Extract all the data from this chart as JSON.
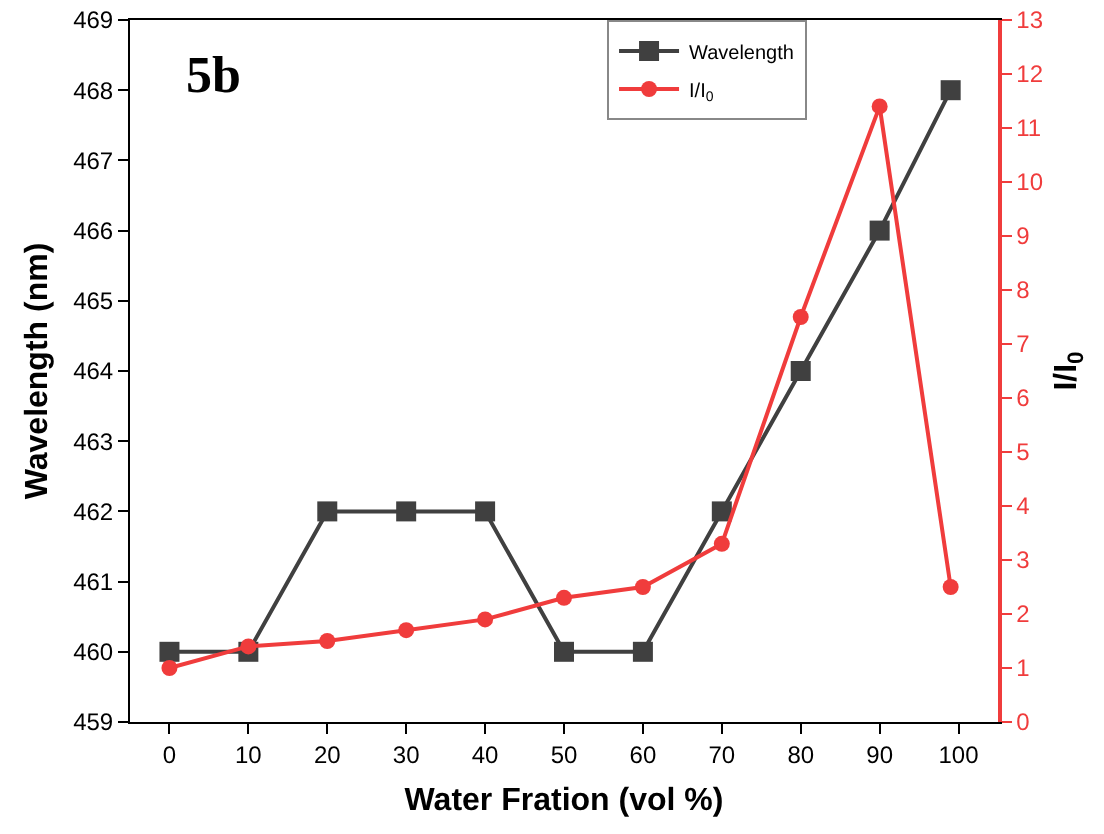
{
  "chart_data": {
    "type": "line",
    "xlabel": "Water Fration (vol %)",
    "ylabel": "Wavelength (nm)",
    "y2label": "I/I$_{0}$",
    "annotations": [
      "5b"
    ],
    "x": [
      0,
      10,
      20,
      30,
      40,
      50,
      60,
      70,
      80,
      90,
      99
    ],
    "series": [
      {
        "name": "Wavelength",
        "color": "#404040",
        "marker": "square",
        "values": [
          460,
          460,
          462,
          462,
          462,
          460,
          460,
          462,
          464,
          466,
          468
        ]
      },
      {
        "name": "I/I$_{0}$",
        "color": "#f03c3c",
        "marker": "circle",
        "axis": "y2",
        "values": [
          1.0,
          1.4,
          1.5,
          1.7,
          1.9,
          2.3,
          2.5,
          3.3,
          7.5,
          11.4,
          2.5
        ]
      }
    ],
    "xlim": [
      -5,
      105
    ],
    "xticks": [
      0,
      10,
      20,
      30,
      40,
      50,
      60,
      70,
      80,
      90,
      100
    ],
    "ylim": [
      459,
      469
    ],
    "yticks": [
      459,
      460,
      461,
      462,
      463,
      464,
      465,
      466,
      467,
      468,
      469
    ],
    "y2lim": [
      0,
      13
    ],
    "y2ticks": [
      0,
      1,
      2,
      3,
      4,
      5,
      6,
      7,
      8,
      9,
      10,
      11,
      12,
      13
    ],
    "grid": false,
    "legend": "top right"
  }
}
